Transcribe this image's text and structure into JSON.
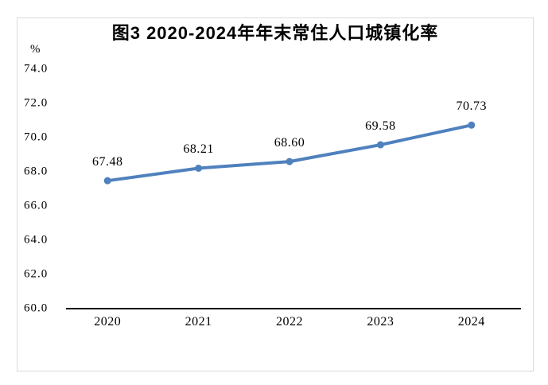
{
  "chart_data": {
    "type": "line",
    "title": "图3 2020-2024年年末常住人口城镇化率",
    "unit": "%",
    "categories": [
      "2020",
      "2021",
      "2022",
      "2023",
      "2024"
    ],
    "values": [
      67.48,
      68.21,
      68.6,
      69.58,
      70.73
    ],
    "data_labels": [
      "67.48",
      "68.21",
      "68.60",
      "69.58",
      "70.73"
    ],
    "yticks": [
      "74.0",
      "72.0",
      "70.0",
      "68.0",
      "66.0",
      "64.0",
      "62.0",
      "60.0"
    ],
    "ylim": [
      60.0,
      74.0
    ],
    "grid": false,
    "legend": "none",
    "line_color": "#4F81BD",
    "axis_color": "#000000",
    "frame_border_color": "#d9d9d9",
    "background_color": "#ffffff"
  }
}
